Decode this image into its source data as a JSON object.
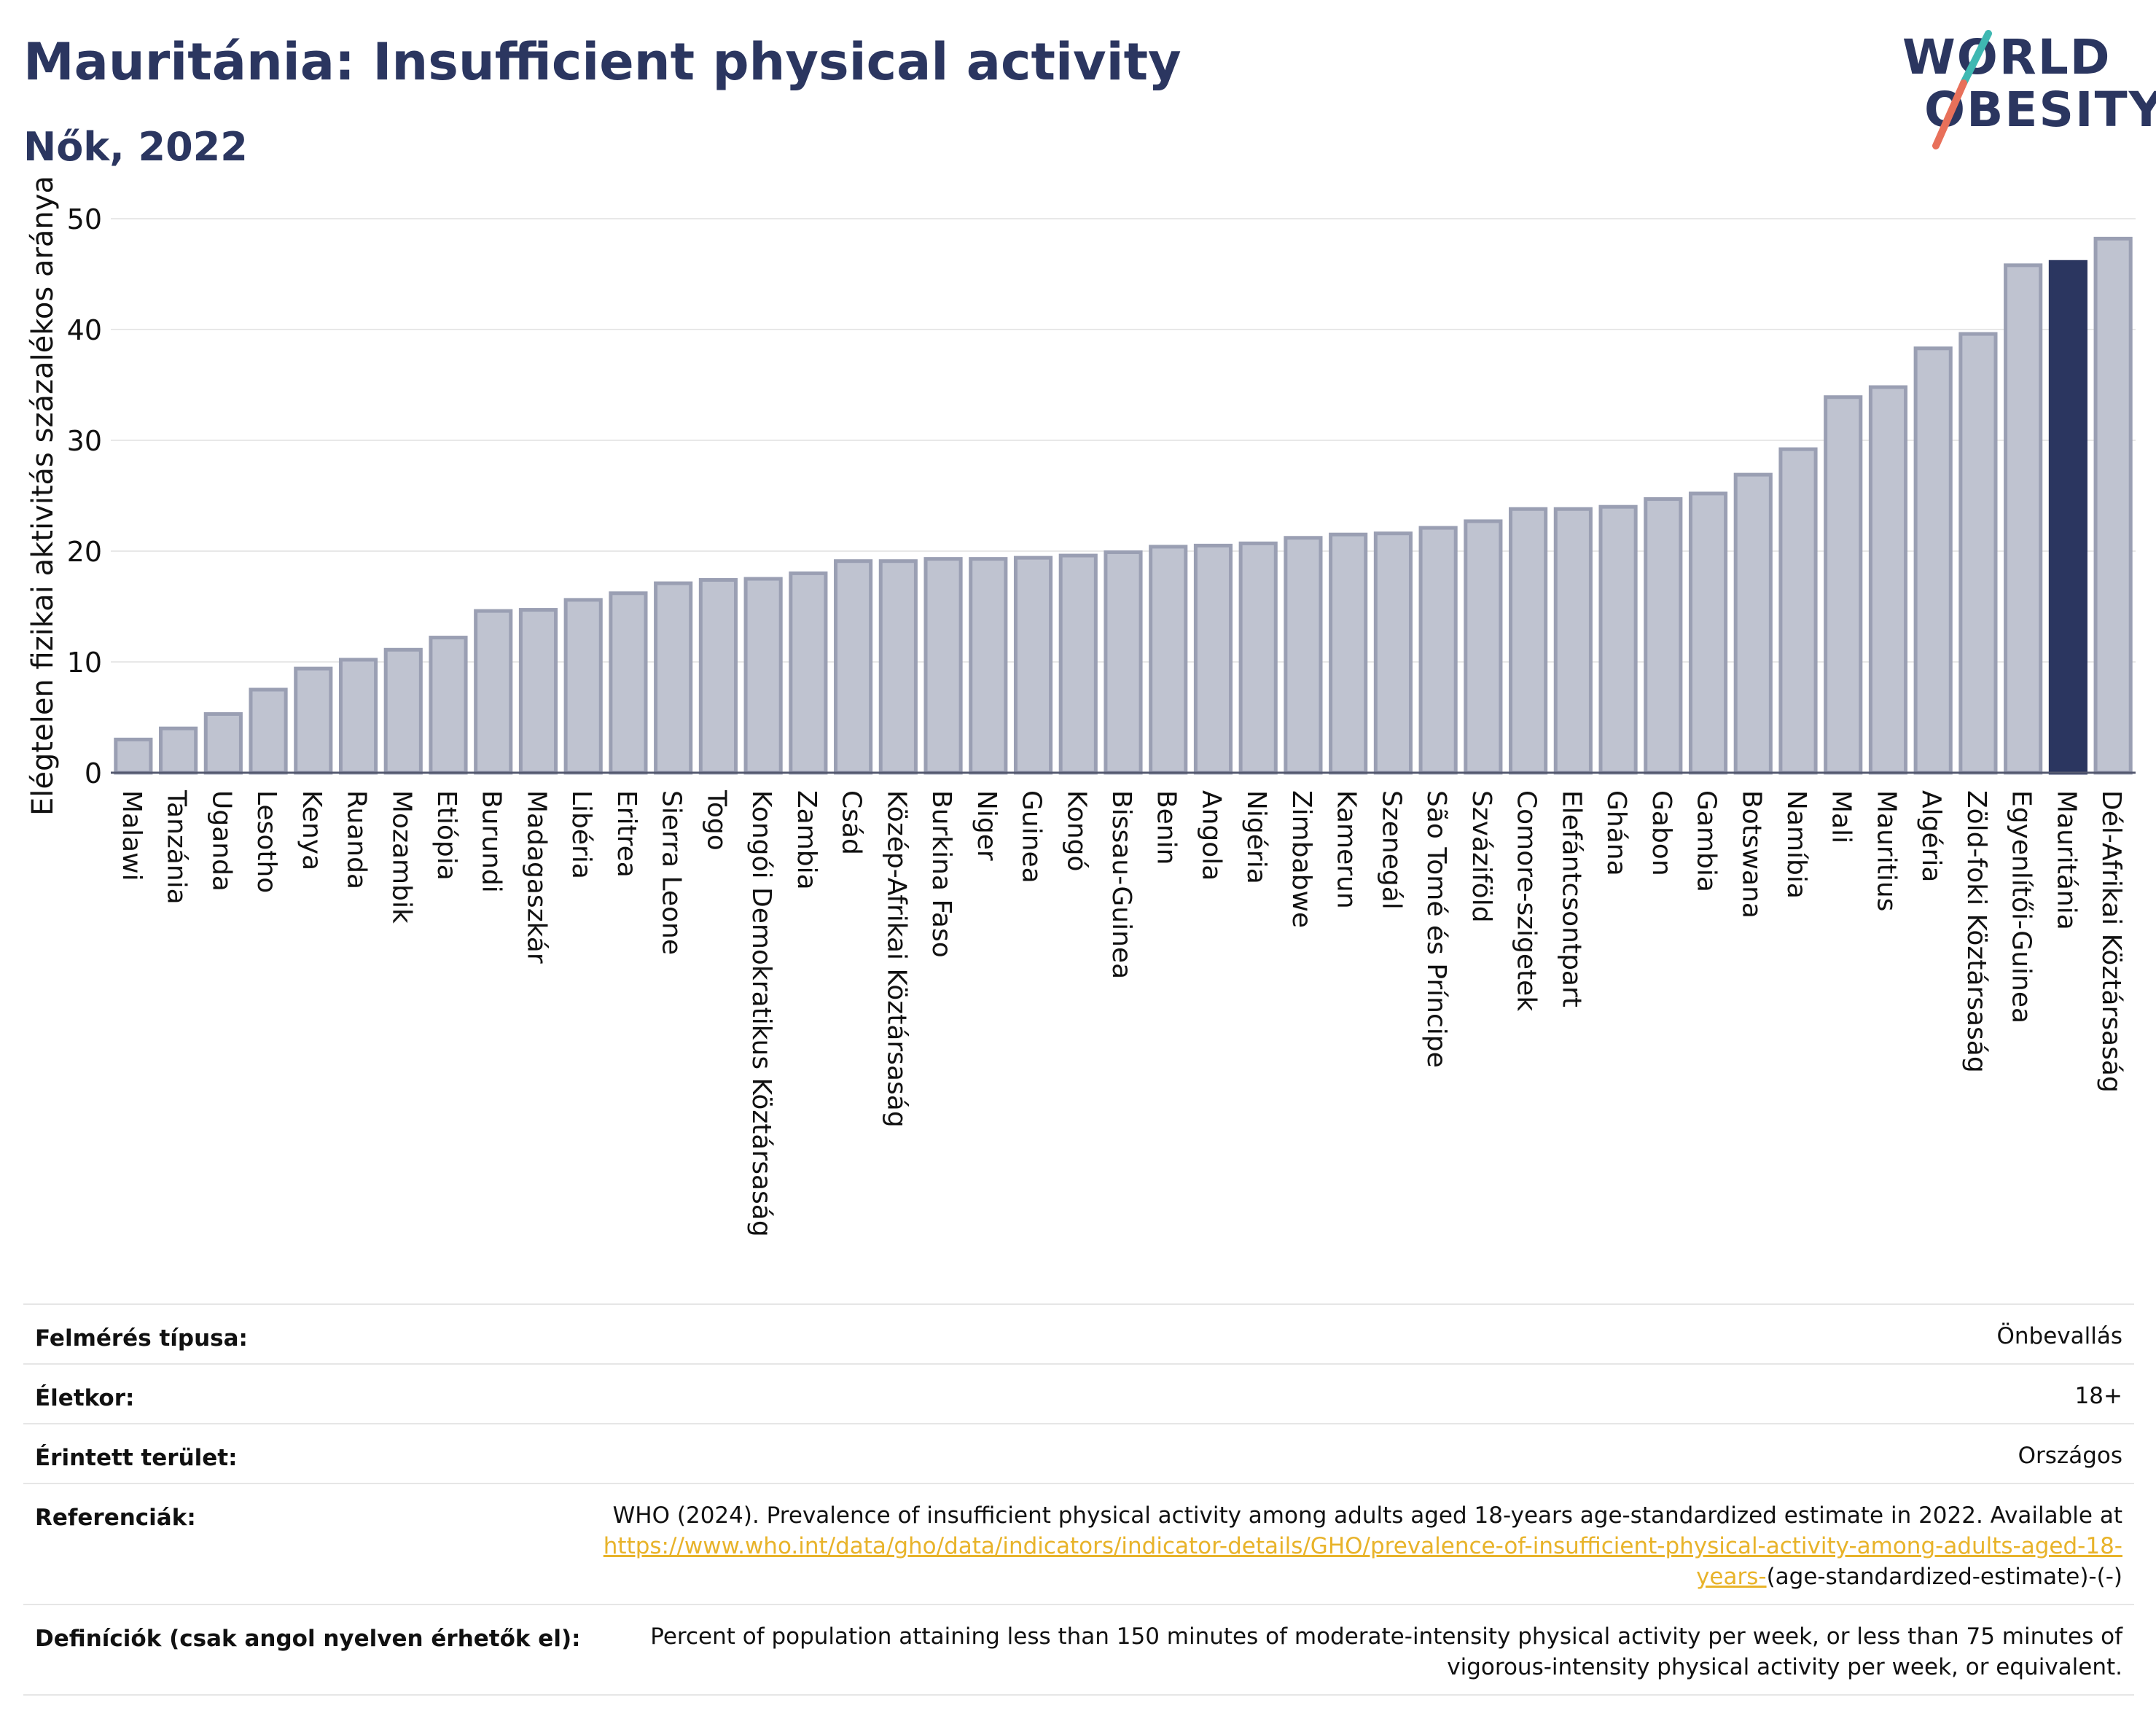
{
  "header": {
    "title": "Mauritánia: Insufficient physical activity",
    "subtitle": "Nők, 2022"
  },
  "logo": {
    "text": "WORLD OBESITY",
    "colors": {
      "text": "#2b3660",
      "slash_teal": "#3fb8b2",
      "slash_coral": "#e8705a"
    }
  },
  "colors": {
    "bar": "#bfc3d0",
    "bar_border": "#9a9fb3",
    "highlight": "#2b3660",
    "grid": "#e8e8e8"
  },
  "chart_data": {
    "type": "bar",
    "ylabel": "Elégtelen fizikai aktivitás százalékos aránya",
    "ylim": [
      0,
      50
    ],
    "yticks": [
      0,
      10,
      20,
      30,
      40,
      50
    ],
    "grid": true,
    "highlight": "Mauritánia",
    "categories": [
      "Malawi",
      "Tanzánia",
      "Uganda",
      "Lesotho",
      "Kenya",
      "Ruanda",
      "Mozambik",
      "Etiópia",
      "Burundi",
      "Madagaszkár",
      "Libéria",
      "Eritrea",
      "Sierra Leone",
      "Togo",
      "Kongói Demokratikus Köztársaság",
      "Zambia",
      "Csád",
      "Közép-Afrikai Köztársaság",
      "Burkina Faso",
      "Niger",
      "Guinea",
      "Kongó",
      "Bissau-Guinea",
      "Benin",
      "Angola",
      "Nigéria",
      "Zimbabwe",
      "Kamerun",
      "Szenegál",
      "São Tomé és Príncipe",
      "Szváziföld",
      "Comore-szigetek",
      "Elefántcsontpart",
      "Ghána",
      "Gabon",
      "Gambia",
      "Botswana",
      "Namíbia",
      "Mali",
      "Mauritius",
      "Algéria",
      "Zöld-foki Köztársaság",
      "Egyenlítői-Guinea",
      "Mauritánia",
      "Dél-Afrikai Köztársaság"
    ],
    "values": [
      3.0,
      4.0,
      5.3,
      7.5,
      9.4,
      10.2,
      11.1,
      12.2,
      14.6,
      14.7,
      15.6,
      16.2,
      17.1,
      17.4,
      17.5,
      18.0,
      19.1,
      19.1,
      19.3,
      19.3,
      19.4,
      19.6,
      19.9,
      20.4,
      20.5,
      20.7,
      21.2,
      21.5,
      21.6,
      22.1,
      22.7,
      23.8,
      23.8,
      24.0,
      24.7,
      25.2,
      26.9,
      29.2,
      33.9,
      34.8,
      38.3,
      39.6,
      45.8,
      46.1,
      48.2
    ]
  },
  "info": {
    "survey_label": "Felmérés típusa:",
    "survey_value": "Önbevallás",
    "age_label": "Életkor:",
    "age_value": "18+",
    "area_label": "Érintett terület:",
    "area_value": "Országos",
    "ref_label": "Referenciák:",
    "ref_text": "WHO (2024). Prevalence of insufficient physical activity among adults aged 18-years age-standardized estimate in 2022. Available at",
    "ref_link": "https://www.who.int/data/gho/data/indicators/indicator-details/GHO/prevalence-of-insufficient-physical-activity-among-adults-aged-18-years-",
    "ref_suffix": "(age-standardized-estimate)-(-)",
    "def_label": "Definíciók (csak angol nyelven érhetők el):",
    "def_text": "Percent of population attaining less than 150 minutes of moderate-intensity physical activity per week, or less than 75 minutes of vigorous-intensity physical activity per week, or equivalent."
  }
}
